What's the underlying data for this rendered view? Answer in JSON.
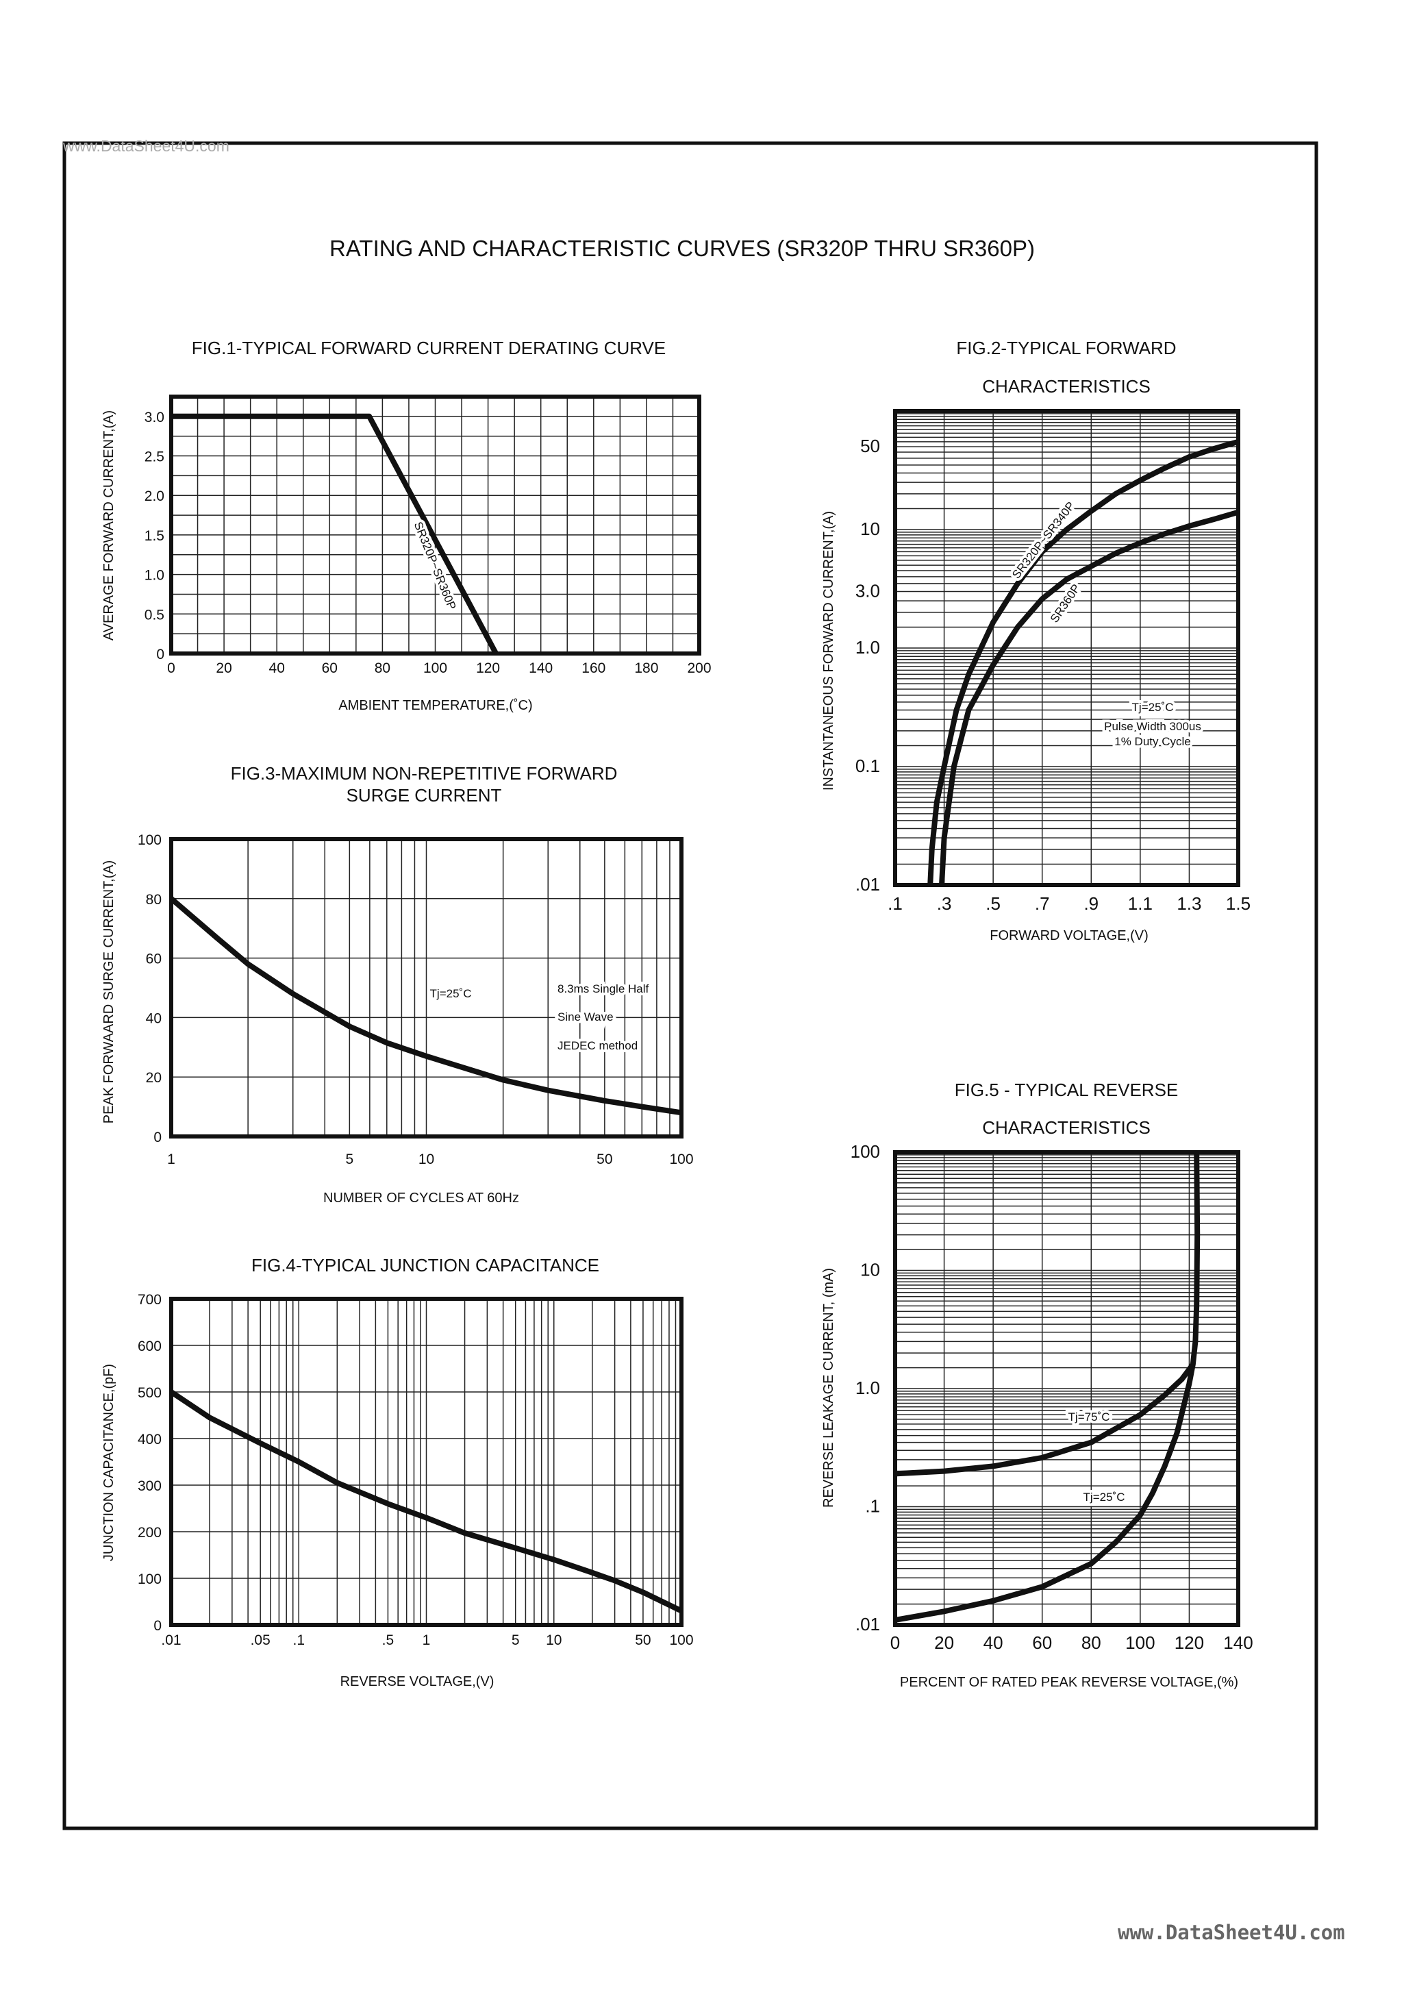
{
  "page": {
    "title": "RATING AND CHARACTERISTIC CURVES (SR320P THRU SR360P)",
    "watermark_top": "www.DataSheet4U.com",
    "watermark_bottom": "www.DataSheet4U.com"
  },
  "chart_data": [
    {
      "type": "line",
      "title": [
        "FIG.1-TYPICAL FORWARD CURRENT DERATING CURVE"
      ],
      "xlabel": "AMBIENT TEMPERATURE,(˚C)",
      "ylabel": "AVERAGE FORWARD CURRENT,(A)",
      "x_axis": {
        "scale": "linear",
        "range": [
          0,
          200
        ],
        "grid_step": 10,
        "ticks": [
          {
            "v": 0,
            "label": "0"
          },
          {
            "v": 20,
            "label": "20"
          },
          {
            "v": 40,
            "label": "40"
          },
          {
            "v": 60,
            "label": "60"
          },
          {
            "v": 80,
            "label": "80"
          },
          {
            "v": 100,
            "label": "100"
          },
          {
            "v": 120,
            "label": "120"
          },
          {
            "v": 140,
            "label": "140"
          },
          {
            "v": 160,
            "label": "160"
          },
          {
            "v": 180,
            "label": "180"
          },
          {
            "v": 200,
            "label": "200"
          }
        ]
      },
      "y_axis": {
        "scale": "linear",
        "range": [
          0,
          3.25
        ],
        "grid_step": 0.25,
        "ticks": [
          {
            "v": 0,
            "label": "0"
          },
          {
            "v": 0.5,
            "label": "0.5"
          },
          {
            "v": 1,
            "label": "1.0"
          },
          {
            "v": 1.5,
            "label": "1.5"
          },
          {
            "v": 2,
            "label": "2.0"
          },
          {
            "v": 2.5,
            "label": "2.5"
          },
          {
            "v": 3,
            "label": "3.0"
          }
        ]
      },
      "grid": true,
      "series": [
        {
          "name": "SR320P~SR360P",
          "points": [
            [
              0,
              3.0
            ],
            [
              75,
              3.0
            ],
            [
              123,
              0
            ]
          ]
        }
      ],
      "annotations": [
        "SR320P~SR360P"
      ]
    },
    {
      "type": "line",
      "title": [
        "FIG.2-TYPICAL FORWARD",
        "CHARACTERISTICS"
      ],
      "xlabel": "FORWARD VOLTAGE,(V)",
      "ylabel": "INSTANTANEOUS FORWARD CURRENT,(A)",
      "x_axis": {
        "scale": "linear",
        "range": [
          0.1,
          1.5
        ],
        "grid_step": 0.2,
        "ticks": [
          {
            "v": 0.1,
            "label": ".1"
          },
          {
            "v": 0.3,
            "label": ".3"
          },
          {
            "v": 0.5,
            "label": ".5"
          },
          {
            "v": 0.7,
            "label": ".7"
          },
          {
            "v": 0.9,
            "label": ".9"
          },
          {
            "v": 1.1,
            "label": "1.1"
          },
          {
            "v": 1.3,
            "label": "1.3"
          },
          {
            "v": 1.5,
            "label": "1.5"
          }
        ]
      },
      "y_axis": {
        "scale": "log",
        "range": [
          0.01,
          100
        ],
        "ticks": [
          {
            "v": 0.01,
            "label": ".01"
          },
          {
            "v": 0.1,
            "label": "0.1"
          },
          {
            "v": 1,
            "label": "1.0"
          },
          {
            "v": 3,
            "label": "3.0"
          },
          {
            "v": 10,
            "label": "10"
          },
          {
            "v": 50,
            "label": "50"
          }
        ]
      },
      "grid": true,
      "series": [
        {
          "name": "SR320P~SR340P",
          "points": [
            [
              0.243,
              0.01
            ],
            [
              0.25,
              0.02
            ],
            [
              0.27,
              0.05
            ],
            [
              0.3,
              0.1
            ],
            [
              0.35,
              0.3
            ],
            [
              0.4,
              0.6
            ],
            [
              0.5,
              1.65
            ],
            [
              0.6,
              3.5
            ],
            [
              0.7,
              6.5
            ],
            [
              0.8,
              10
            ],
            [
              0.9,
              14.3
            ],
            [
              1.0,
              20
            ],
            [
              1.1,
              26
            ],
            [
              1.2,
              33
            ],
            [
              1.3,
              41
            ],
            [
              1.4,
              48
            ],
            [
              1.5,
              55
            ]
          ]
        },
        {
          "name": "SR360P",
          "points": [
            [
              0.29,
              0.01
            ],
            [
              0.3,
              0.025
            ],
            [
              0.34,
              0.1
            ],
            [
              0.4,
              0.3
            ],
            [
              0.5,
              0.72
            ],
            [
              0.6,
              1.5
            ],
            [
              0.7,
              2.6
            ],
            [
              0.8,
              3.8
            ],
            [
              0.9,
              4.9
            ],
            [
              1.0,
              6.3
            ],
            [
              1.1,
              7.7
            ],
            [
              1.2,
              9.2
            ],
            [
              1.3,
              10.7
            ],
            [
              1.4,
              12.2
            ],
            [
              1.5,
              14
            ]
          ]
        }
      ],
      "annotations": [
        "SR320P~SR340P",
        "SR360P",
        "Tj=25˚C",
        "Pulse Width 300us",
        "1% Duty Cycle"
      ]
    },
    {
      "type": "line",
      "title": [
        "FIG.3-MAXIMUM NON-REPETITIVE FORWARD",
        "SURGE CURRENT"
      ],
      "xlabel": "NUMBER OF CYCLES AT 60Hz",
      "ylabel": "PEAK FORWAARD SURGE CURRENT,(A)",
      "x_axis": {
        "scale": "log",
        "range": [
          1,
          100
        ],
        "ticks": [
          {
            "v": 1,
            "label": "1"
          },
          {
            "v": 5,
            "label": "5"
          },
          {
            "v": 10,
            "label": "10"
          },
          {
            "v": 50,
            "label": "50"
          },
          {
            "v": 100,
            "label": "100"
          }
        ]
      },
      "y_axis": {
        "scale": "linear",
        "range": [
          0,
          100
        ],
        "grid_step": 20,
        "ticks": [
          {
            "v": 0,
            "label": "0"
          },
          {
            "v": 20,
            "label": "20"
          },
          {
            "v": 40,
            "label": "40"
          },
          {
            "v": 60,
            "label": "60"
          },
          {
            "v": 80,
            "label": "80"
          },
          {
            "v": 100,
            "label": "100"
          }
        ]
      },
      "grid": true,
      "series": [
        {
          "points": [
            [
              1,
              80
            ],
            [
              1.5,
              67
            ],
            [
              2,
              58
            ],
            [
              3,
              48
            ],
            [
              5,
              37
            ],
            [
              7,
              31.5
            ],
            [
              10,
              27
            ],
            [
              20,
              19
            ],
            [
              30,
              15.5
            ],
            [
              50,
              12
            ],
            [
              70,
              10
            ],
            [
              100,
              8
            ]
          ]
        }
      ],
      "annotations": [
        "Tj=25˚C",
        "8.3ms Single Half",
        "Sine Wave",
        "JEDEC method"
      ]
    },
    {
      "type": "line",
      "title": [
        "FIG.4-TYPICAL JUNCTION CAPACITANCE"
      ],
      "xlabel": "REVERSE VOLTAGE,(V)",
      "ylabel": "JUNCTION CAPACITANCE,(pF)",
      "x_axis": {
        "scale": "log",
        "range": [
          0.01,
          100
        ],
        "ticks": [
          {
            "v": 0.01,
            "label": ".01"
          },
          {
            "v": 0.05,
            "label": ".05"
          },
          {
            "v": 0.1,
            "label": ".1"
          },
          {
            "v": 0.5,
            "label": ".5"
          },
          {
            "v": 1,
            "label": "1"
          },
          {
            "v": 5,
            "label": "5"
          },
          {
            "v": 10,
            "label": "10"
          },
          {
            "v": 50,
            "label": "50"
          },
          {
            "v": 100,
            "label": "100"
          }
        ]
      },
      "y_axis": {
        "scale": "linear",
        "range": [
          0,
          700
        ],
        "grid_step": 100,
        "ticks": [
          {
            "v": 0,
            "label": "0"
          },
          {
            "v": 100,
            "label": "100"
          },
          {
            "v": 200,
            "label": "200"
          },
          {
            "v": 300,
            "label": "300"
          },
          {
            "v": 400,
            "label": "400"
          },
          {
            "v": 500,
            "label": "500"
          },
          {
            "v": 600,
            "label": "600"
          },
          {
            "v": 700,
            "label": "700"
          }
        ]
      },
      "grid": true,
      "series": [
        {
          "points": [
            [
              0.01,
              500
            ],
            [
              0.02,
              445
            ],
            [
              0.05,
              390
            ],
            [
              0.1,
              350
            ],
            [
              0.2,
              305
            ],
            [
              0.5,
              260
            ],
            [
              1,
              230
            ],
            [
              2,
              197
            ],
            [
              5,
              165
            ],
            [
              10,
              140
            ],
            [
              20,
              112
            ],
            [
              30,
              95
            ],
            [
              50,
              70
            ],
            [
              100,
              30
            ]
          ]
        }
      ],
      "annotations": []
    },
    {
      "type": "line",
      "title": [
        "FIG.5 - TYPICAL REVERSE",
        "CHARACTERISTICS"
      ],
      "xlabel": "PERCENT OF RATED PEAK REVERSE VOLTAGE,(%)",
      "ylabel": "REVERSE LEAKAGE CURRENT, (mA)",
      "x_axis": {
        "scale": "linear",
        "range": [
          0,
          140
        ],
        "grid_step": 20,
        "ticks": [
          {
            "v": 0,
            "label": "0"
          },
          {
            "v": 20,
            "label": "20"
          },
          {
            "v": 40,
            "label": "40"
          },
          {
            "v": 60,
            "label": "60"
          },
          {
            "v": 80,
            "label": "80"
          },
          {
            "v": 100,
            "label": "100"
          },
          {
            "v": 120,
            "label": "120"
          },
          {
            "v": 140,
            "label": "140"
          }
        ]
      },
      "y_axis": {
        "scale": "log",
        "range": [
          0.01,
          100
        ],
        "ticks": [
          {
            "v": 0.01,
            "label": ".01"
          },
          {
            "v": 0.1,
            "label": ".1"
          },
          {
            "v": 1,
            "label": "1.0"
          },
          {
            "v": 10,
            "label": "10"
          },
          {
            "v": 100,
            "label": "100"
          }
        ]
      },
      "grid": true,
      "series": [
        {
          "name": "Tj=75˚C",
          "points": [
            [
              0,
              0.19
            ],
            [
              20,
              0.2
            ],
            [
              40,
              0.22
            ],
            [
              60,
              0.26
            ],
            [
              80,
              0.35
            ],
            [
              100,
              0.6
            ],
            [
              110,
              0.88
            ],
            [
              117,
              1.2
            ],
            [
              121.5,
              1.6
            ],
            [
              122.5,
              2.5
            ],
            [
              123,
              5
            ],
            [
              123.3,
              20
            ],
            [
              123,
              100
            ]
          ]
        },
        {
          "name": "Tj=25˚C",
          "points": [
            [
              0,
              0.011
            ],
            [
              20,
              0.013
            ],
            [
              40,
              0.016
            ],
            [
              60,
              0.021
            ],
            [
              80,
              0.033
            ],
            [
              90,
              0.05
            ],
            [
              100,
              0.085
            ],
            [
              105,
              0.13
            ],
            [
              110,
              0.22
            ],
            [
              115,
              0.42
            ],
            [
              118,
              0.75
            ],
            [
              120,
              1.1
            ],
            [
              121.5,
              1.6
            ]
          ]
        }
      ],
      "annotations": [
        "Tj=75˚C",
        "Tj=25˚C"
      ]
    }
  ]
}
